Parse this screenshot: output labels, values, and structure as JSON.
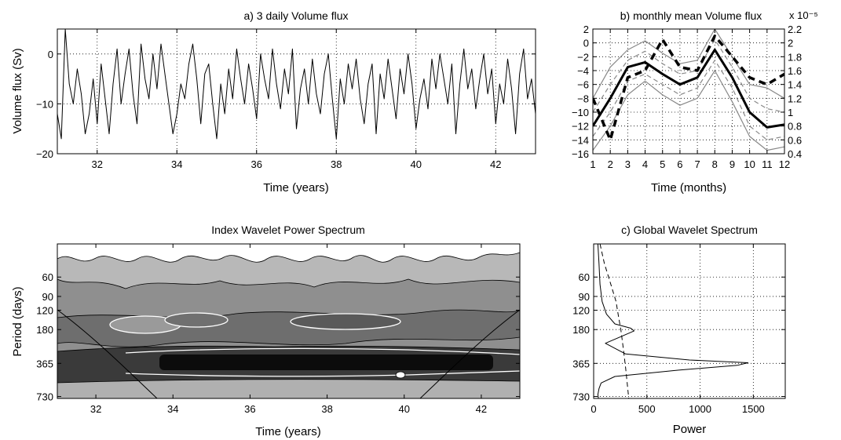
{
  "chart_data": [
    {
      "id": "a",
      "type": "line",
      "title": "a) 3 daily Volume flux",
      "xlabel": "Time (years)",
      "ylabel": "Volume flux (Sv)",
      "xlim": [
        31,
        43
      ],
      "ylim": [
        -20,
        5
      ],
      "xticks": [
        32,
        34,
        36,
        38,
        40,
        42
      ],
      "yticks": [
        -20,
        -10,
        0
      ],
      "ytick_labels": [
        "−20",
        "−10",
        "0"
      ],
      "grid": true,
      "series": [
        {
          "x": [
            31.0,
            31.1,
            31.2,
            31.3,
            31.4,
            31.5,
            31.6,
            31.7,
            31.8,
            31.9,
            32.0,
            32.1,
            32.2,
            32.3,
            32.4,
            32.5,
            32.6,
            32.7,
            32.8,
            32.9,
            33.0,
            33.1,
            33.2,
            33.3,
            33.4,
            33.5,
            33.6,
            33.7,
            33.8,
            33.9,
            34.0,
            34.1,
            34.2,
            34.3,
            34.4,
            34.5,
            34.6,
            34.7,
            34.8,
            34.9,
            35.0,
            35.1,
            35.2,
            35.3,
            35.4,
            35.5,
            35.6,
            35.7,
            35.8,
            35.9,
            36.0,
            36.1,
            36.2,
            36.3,
            36.4,
            36.5,
            36.6,
            36.7,
            36.8,
            36.9,
            37.0,
            37.1,
            37.2,
            37.3,
            37.4,
            37.5,
            37.6,
            37.7,
            37.8,
            37.9,
            38.0,
            38.1,
            38.2,
            38.3,
            38.4,
            38.5,
            38.6,
            38.7,
            38.8,
            38.9,
            39.0,
            39.1,
            39.2,
            39.3,
            39.4,
            39.5,
            39.6,
            39.7,
            39.8,
            39.9,
            40.0,
            40.1,
            40.2,
            40.3,
            40.4,
            40.5,
            40.6,
            40.7,
            40.8,
            40.9,
            41.0,
            41.1,
            41.2,
            41.3,
            41.4,
            41.5,
            41.6,
            41.7,
            41.8,
            41.9,
            42.0,
            42.1,
            42.2,
            42.3,
            42.4,
            42.5,
            42.6,
            42.7,
            42.8,
            42.9,
            43.0
          ],
          "y": [
            -12,
            -17,
            5,
            -6,
            -10,
            -3,
            -8,
            -16,
            -12,
            -5,
            -14,
            -2,
            -9,
            -16,
            -6,
            1,
            -10,
            -4,
            1,
            -8,
            -14,
            2,
            -5,
            -9,
            0,
            -7,
            2,
            -4,
            -10,
            -16,
            -12,
            -6,
            -9,
            -2,
            2,
            -5,
            -14,
            -4,
            -2,
            -10,
            -17,
            -6,
            -12,
            -3,
            -9,
            1,
            -5,
            -10,
            -2,
            -7,
            -13,
            0,
            -5,
            -9,
            1,
            -6,
            -11,
            -3,
            -8,
            1,
            -15,
            -7,
            -3,
            -10,
            -1,
            -8,
            -12,
            -4,
            0,
            -9,
            -17,
            -5,
            -10,
            -2,
            -7,
            -1,
            -9,
            -14,
            -6,
            -2,
            -16,
            -4,
            -9,
            -1,
            -7,
            -13,
            -3,
            -8,
            0,
            -6,
            -15,
            -9,
            -5,
            -11,
            -1,
            -7,
            0,
            -5,
            -10,
            -2,
            -16,
            -6,
            1,
            -7,
            -3,
            -11,
            -5,
            0,
            -8,
            -3,
            -14,
            -6,
            -10,
            -1,
            -7,
            -16,
            -4,
            1,
            -9,
            -5,
            -12
          ]
        }
      ]
    },
    {
      "id": "b",
      "type": "line",
      "title": "b) monthly mean Volume flux",
      "xlabel": "Time (months)",
      "ylabel": "",
      "xlim": [
        1,
        12
      ],
      "ylim": [
        -16,
        2
      ],
      "xticks": [
        1,
        2,
        3,
        4,
        5,
        6,
        7,
        8,
        9,
        10,
        11,
        12
      ],
      "yticks": [
        -16,
        -14,
        -12,
        -10,
        -8,
        -6,
        -4,
        -2,
        0,
        2
      ],
      "ytick_labels": [
        "−16",
        "−14",
        "−12",
        "−10",
        "−8",
        "−6",
        "−4",
        "−2",
        "0",
        "2"
      ],
      "y2lim": [
        0.4,
        2.2
      ],
      "y2ticks": [
        0.4,
        0.6,
        0.8,
        1,
        1.2,
        1.4,
        1.6,
        1.8,
        2,
        2.2
      ],
      "y2_exponent": "x 10⁻⁵",
      "grid": true,
      "series": [
        {
          "style": "mean",
          "axis": "left",
          "x": [
            1,
            2,
            3,
            4,
            5,
            6,
            7,
            8,
            9,
            10,
            11,
            12
          ],
          "y": [
            -12,
            -8,
            -3.5,
            -2.8,
            -4.5,
            -6,
            -5,
            -1,
            -5,
            -10,
            -12.2,
            -11.8
          ]
        },
        {
          "style": "band-outer",
          "axis": "left",
          "x": [
            1,
            2,
            3,
            4,
            5,
            6,
            7,
            8,
            9,
            10,
            11,
            12
          ],
          "y": [
            -8,
            -3.5,
            -1,
            0.3,
            -1.5,
            -3,
            -2.5,
            2,
            -2,
            -6,
            -6.5,
            -8
          ]
        },
        {
          "style": "band-outer",
          "axis": "left",
          "x": [
            1,
            2,
            3,
            4,
            5,
            6,
            7,
            8,
            9,
            10,
            11,
            12
          ],
          "y": [
            -15.5,
            -12,
            -7.5,
            -5.5,
            -7.5,
            -9,
            -8,
            -4,
            -8.5,
            -13.5,
            -15.5,
            -15
          ]
        },
        {
          "style": "band-inner",
          "axis": "left",
          "x": [
            1,
            2,
            3,
            4,
            5,
            6,
            7,
            8,
            9,
            10,
            11,
            12
          ],
          "y": [
            -10,
            -6,
            -2.5,
            -1.2,
            -3,
            -4.5,
            -4,
            0.5,
            -3.5,
            -8,
            -9.5,
            -10
          ]
        },
        {
          "style": "band-inner",
          "axis": "left",
          "x": [
            1,
            2,
            3,
            4,
            5,
            6,
            7,
            8,
            9,
            10,
            11,
            12
          ],
          "y": [
            -13.5,
            -10,
            -5.5,
            -4.5,
            -6,
            -7.5,
            -6.5,
            -2.5,
            -6.5,
            -12,
            -14,
            -13.5
          ]
        },
        {
          "style": "right-axis",
          "axis": "right",
          "x": [
            1,
            2,
            3,
            4,
            5,
            6,
            7,
            8,
            9,
            10,
            11,
            12
          ],
          "y": [
            1.2,
            0.6,
            1.5,
            1.6,
            2.05,
            1.65,
            1.6,
            2.1,
            1.8,
            1.5,
            1.4,
            1.55
          ]
        }
      ]
    },
    {
      "id": "wavelet",
      "type": "heatmap",
      "title": "Index Wavelet Power Spectrum",
      "xlabel": "Time (years)",
      "ylabel": "Period (days)",
      "xlim": [
        31,
        43
      ],
      "xticks": [
        32,
        34,
        36,
        38,
        40,
        42
      ],
      "yticks": [
        60,
        90,
        120,
        180,
        365,
        730
      ],
      "ylog": true,
      "ylim": [
        30,
        760
      ]
    },
    {
      "id": "c",
      "type": "line",
      "title": "c) Global Wavelet Spectrum",
      "xlabel": "Power",
      "ylabel": "",
      "xlim": [
        0,
        1800
      ],
      "xticks": [
        0,
        500,
        1000,
        1500
      ],
      "yticks": [
        60,
        90,
        120,
        180,
        365,
        730
      ],
      "ylog": true,
      "ylim": [
        30,
        760
      ],
      "grid": true,
      "series": [
        {
          "style": "solid",
          "x": [
            40,
            50,
            60,
            80,
            120,
            200,
            350,
            380,
            250,
            110,
            300,
            900,
            1450,
            1350,
            800,
            200,
            70,
            50,
            40,
            45
          ],
          "y": [
            30,
            45,
            70,
            100,
            130,
            160,
            175,
            185,
            210,
            240,
            300,
            340,
            360,
            380,
            420,
            480,
            550,
            620,
            700,
            760
          ]
        },
        {
          "style": "dashed",
          "x": [
            60,
            100,
            140,
            180,
            210,
            235,
            255,
            270,
            285,
            300,
            315,
            330
          ],
          "y": [
            30,
            45,
            60,
            80,
            100,
            140,
            180,
            230,
            300,
            400,
            550,
            760
          ]
        }
      ]
    }
  ]
}
